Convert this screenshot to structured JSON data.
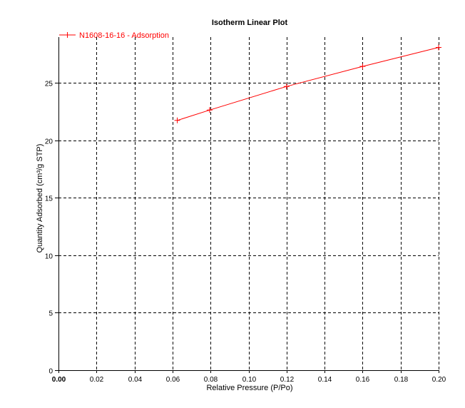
{
  "chart_data": {
    "type": "line",
    "title": "Isotherm Linear Plot",
    "xlabel": "Relative Pressure (P/Po)",
    "ylabel": "Quantity Adsorbed (cm³/g STP)",
    "xlim": [
      0.0,
      0.2
    ],
    "ylim": [
      0,
      29
    ],
    "x_ticks": [
      0.0,
      0.02,
      0.04,
      0.06,
      0.08,
      0.1,
      0.12,
      0.14,
      0.16,
      0.18,
      0.2
    ],
    "x_tick_labels": [
      "0.00",
      "0.02",
      "0.04",
      "0.06",
      "0.08",
      "0.10",
      "0.12",
      "0.14",
      "0.16",
      "0.18",
      "0.20"
    ],
    "y_ticks": [
      0,
      5,
      10,
      15,
      20,
      25
    ],
    "y_tick_labels": [
      "0",
      "5",
      "10",
      "15",
      "20",
      "25"
    ],
    "grid": true,
    "legend_position": "top-left",
    "series": [
      {
        "name": "N1608-16-16 - Adsorption",
        "color": "#ff0000",
        "marker": "plus",
        "x": [
          0.0625,
          0.0795,
          0.12,
          0.16,
          0.2
        ],
        "y": [
          21.75,
          22.65,
          24.7,
          26.45,
          28.1
        ]
      }
    ]
  }
}
